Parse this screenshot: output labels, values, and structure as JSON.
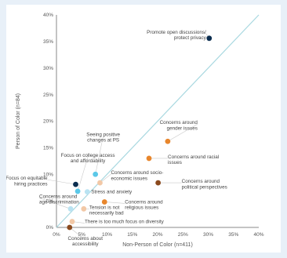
{
  "chart_data": {
    "type": "scatter",
    "title": "",
    "xlabel": "Non-Person of Color (n=411)",
    "ylabel": "Person of Color (n=84)",
    "xlim": [
      0,
      40
    ],
    "ylim": [
      0,
      40
    ],
    "xticks": [
      "0%",
      "5%",
      "10%",
      "15%",
      "20%",
      "25%",
      "30%",
      "35%",
      "40%"
    ],
    "yticks": [
      "0%",
      "5%",
      "10%",
      "15%",
      "20%",
      "25%",
      "30%",
      "35%",
      "40%"
    ],
    "grid": false,
    "reference_line": "y = x",
    "colors": {
      "dark_navy": "#0b2d4f",
      "orange": "#e8862c",
      "brown": "#8b4a1e",
      "light_blue": "#5bc8e8",
      "pale_blue": "#b9e3f2",
      "peach": "#f2c8a6",
      "axis": "#888888",
      "diagonal": "#a8d8e0",
      "label_line": "#c9c9c9"
    },
    "points": [
      {
        "label": "Promote open discussions/ protect privacy",
        "x": 30.2,
        "y": 35.6,
        "color": "dark_navy"
      },
      {
        "label": "Concerns around gender issues",
        "x": 22.0,
        "y": 16.2,
        "color": "orange"
      },
      {
        "label": "Concerns around racial issues",
        "x": 18.3,
        "y": 13.0,
        "color": "orange"
      },
      {
        "label": "Concerns around political perspectives",
        "x": 20.1,
        "y": 8.4,
        "color": "brown"
      },
      {
        "label": "Concerns around socio-economic issues",
        "x": 8.6,
        "y": 8.4,
        "color": "peach"
      },
      {
        "label": "Seeing positive changes at PS",
        "x": 7.7,
        "y": 10.0,
        "color": "light_blue"
      },
      {
        "label": "Focus on equitable hiring practices",
        "x": 3.8,
        "y": 8.1,
        "color": "dark_navy"
      },
      {
        "label": "Focus on college access and affordability",
        "x": 4.2,
        "y": 6.8,
        "color": "light_blue"
      },
      {
        "label": "Stress and anxiety",
        "x": 6.1,
        "y": 6.7,
        "color": "pale_blue"
      },
      {
        "label": "Concerns around religious issues",
        "x": 9.5,
        "y": 4.8,
        "color": "orange"
      },
      {
        "label": "Concerns around age discrimination",
        "x": 2.8,
        "y": 3.5,
        "color": "pale_blue"
      },
      {
        "label": "Tension is not necessarily bad",
        "x": 5.4,
        "y": 3.5,
        "color": "peach"
      },
      {
        "label": "There is too much focus on diversity",
        "x": 3.1,
        "y": 1.1,
        "color": "peach"
      },
      {
        "label": "Concerns about accessibility",
        "x": 2.6,
        "y": 0.0,
        "color": "brown"
      }
    ]
  }
}
